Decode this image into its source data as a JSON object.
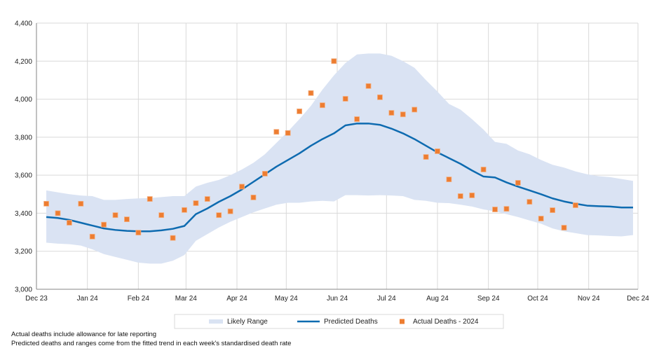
{
  "chart_data": {
    "type": "line",
    "title": "",
    "xlabel": "",
    "ylabel": "",
    "ylim": [
      3000,
      4400
    ],
    "yticks": [
      3000,
      3200,
      3400,
      3600,
      3800,
      4000,
      4200,
      4400
    ],
    "ytick_labels": [
      "3,000",
      "3,200",
      "3,400",
      "3,600",
      "3,800",
      "4,000",
      "4,200",
      "4,400"
    ],
    "xlim": [
      "2023-12-01",
      "2024-12-01"
    ],
    "xticks": [
      "2023-12-01",
      "2024-01-01",
      "2024-02-01",
      "2024-03-01",
      "2024-04-01",
      "2024-05-01",
      "2024-06-01",
      "2024-07-01",
      "2024-08-01",
      "2024-09-01",
      "2024-10-01",
      "2024-11-01",
      "2024-12-01"
    ],
    "xtick_labels": [
      "Dec 23",
      "Jan 24",
      "Feb 24",
      "Mar 24",
      "Apr 24",
      "May 24",
      "Jun 24",
      "Jul 24",
      "Aug 24",
      "Sep 24",
      "Oct 24",
      "Nov 24",
      "Dec 24"
    ],
    "grid": true,
    "legend_position": "bottom",
    "x": [
      "2023-12-07",
      "2023-12-14",
      "2023-12-21",
      "2023-12-28",
      "2024-01-04",
      "2024-01-11",
      "2024-01-18",
      "2024-01-25",
      "2024-02-01",
      "2024-02-08",
      "2024-02-15",
      "2024-02-22",
      "2024-02-29",
      "2024-03-07",
      "2024-03-14",
      "2024-03-21",
      "2024-03-28",
      "2024-04-04",
      "2024-04-11",
      "2024-04-18",
      "2024-04-25",
      "2024-05-02",
      "2024-05-09",
      "2024-05-16",
      "2024-05-23",
      "2024-05-30",
      "2024-06-06",
      "2024-06-13",
      "2024-06-20",
      "2024-06-27",
      "2024-07-04",
      "2024-07-11",
      "2024-07-18",
      "2024-07-25",
      "2024-08-01",
      "2024-08-08",
      "2024-08-15",
      "2024-08-22",
      "2024-08-29",
      "2024-09-05",
      "2024-09-12",
      "2024-09-19",
      "2024-09-26",
      "2024-10-03",
      "2024-10-10",
      "2024-10-17",
      "2024-10-24",
      "2024-10-31",
      "2024-11-07",
      "2024-11-14",
      "2024-11-21",
      "2024-11-28"
    ],
    "series": [
      {
        "name": "Likely Range",
        "kind": "band",
        "color": "#dae3f3",
        "upper": [
          3520,
          3510,
          3500,
          3493,
          3490,
          3470,
          3470,
          3475,
          3478,
          3480,
          3485,
          3490,
          3490,
          3540,
          3560,
          3575,
          3600,
          3630,
          3665,
          3710,
          3770,
          3830,
          3895,
          3965,
          4050,
          4125,
          4190,
          4235,
          4240,
          4240,
          4228,
          4200,
          4165,
          4100,
          4040,
          3975,
          3945,
          3895,
          3840,
          3775,
          3765,
          3730,
          3710,
          3680,
          3655,
          3640,
          3620,
          3605,
          3595,
          3590,
          3580,
          3570
        ],
        "lower": [
          3245,
          3240,
          3237,
          3230,
          3210,
          3185,
          3170,
          3155,
          3140,
          3135,
          3135,
          3150,
          3180,
          3255,
          3290,
          3325,
          3355,
          3380,
          3405,
          3425,
          3445,
          3455,
          3455,
          3462,
          3465,
          3462,
          3495,
          3495,
          3493,
          3495,
          3493,
          3490,
          3470,
          3465,
          3455,
          3453,
          3445,
          3435,
          3420,
          3410,
          3395,
          3380,
          3362,
          3345,
          3320,
          3305,
          3295,
          3285,
          3283,
          3280,
          3278,
          3285
        ]
      },
      {
        "name": "Predicted Deaths",
        "kind": "line",
        "color": "#0e6bb0",
        "values": [
          3380,
          3375,
          3365,
          3350,
          3335,
          3320,
          3312,
          3307,
          3305,
          3305,
          3310,
          3318,
          3333,
          3395,
          3425,
          3460,
          3490,
          3525,
          3565,
          3605,
          3645,
          3680,
          3715,
          3755,
          3790,
          3820,
          3862,
          3872,
          3872,
          3865,
          3845,
          3820,
          3790,
          3755,
          3720,
          3690,
          3660,
          3625,
          3593,
          3588,
          3562,
          3540,
          3520,
          3500,
          3478,
          3462,
          3450,
          3440,
          3437,
          3435,
          3430,
          3430
        ]
      },
      {
        "name": "Actual Deaths - 2024",
        "kind": "scatter",
        "color": "#ed7d31",
        "values": [
          3450,
          3400,
          3350,
          3450,
          3277,
          3340,
          3390,
          3368,
          3298,
          3475,
          3390,
          3270,
          3417,
          3453,
          3475,
          3390,
          3410,
          3540,
          3483,
          3608,
          3828,
          3822,
          3936,
          4032,
          3968,
          4200,
          4002,
          3895,
          4069,
          4010,
          3928,
          3920,
          3945,
          3696,
          3726,
          3578,
          3490,
          3494,
          3630,
          3420,
          3423,
          3560,
          3460,
          3372,
          3416,
          3324,
          3442
        ]
      }
    ]
  },
  "footnotes": [
    "Actual deaths include allowance for late reporting",
    "Predicted deaths and ranges come from the fitted trend in each week's standardised death rate"
  ]
}
